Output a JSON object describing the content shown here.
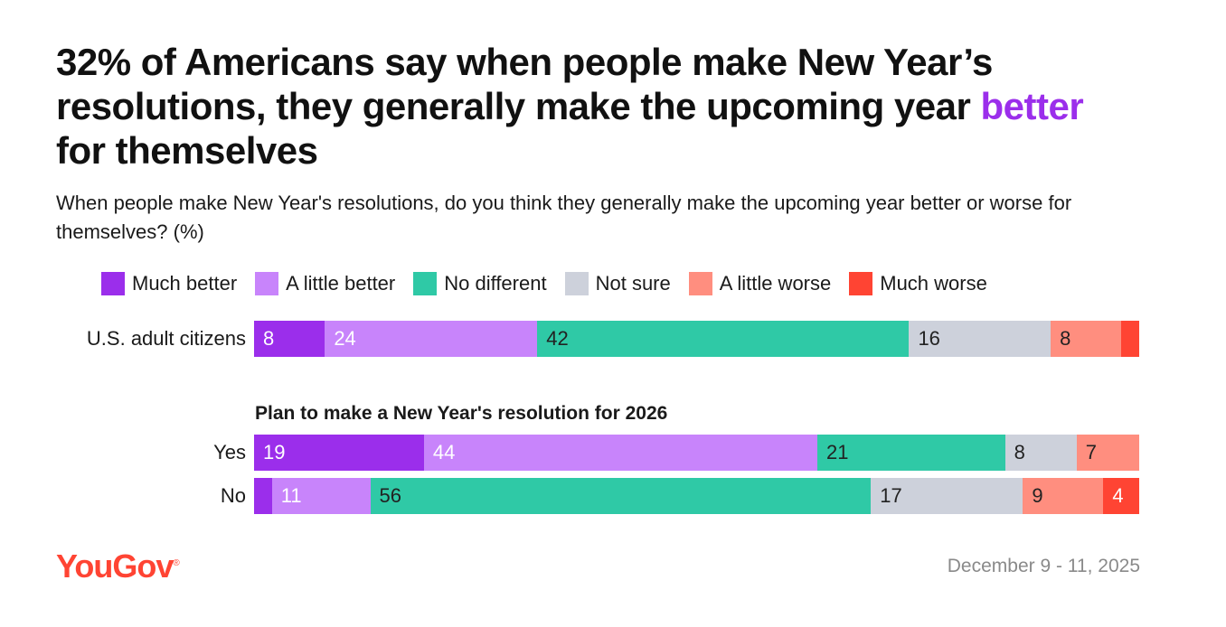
{
  "title": {
    "part1": "32% of Americans say when people make New Year’s resolutions, they generally make the upcoming year ",
    "highlight": "better",
    "part2": " for themselves"
  },
  "subtitle": "When people make New Year's resolutions, do you think they generally make the upcoming year better or worse for themselves? (%)",
  "group_title": "Plan to make a New Year's resolution for 2026",
  "logo": "YouGov",
  "logo_mark": "®",
  "date": "December 9 - 11, 2025",
  "colors": {
    "highlight": "#9b2eeb",
    "logo": "#ff4433",
    "date": "#8a8a8a"
  },
  "chart_data": {
    "type": "bar",
    "orientation": "horizontal-stacked-100",
    "categories_legend": [
      "Much better",
      "A little better",
      "No different",
      "Not sure",
      "A little worse",
      "Much worse"
    ],
    "series_colors": [
      "#9b2eeb",
      "#c884fb",
      "#2fc9a6",
      "#cdd1db",
      "#ff8e7f",
      "#ff4433"
    ],
    "label_colors": [
      "#ffffff",
      "#ffffff",
      "#222222",
      "#222222",
      "#222222",
      "#ffffff"
    ],
    "rows": [
      {
        "name": "U.S. adult citizens",
        "values": [
          8,
          24,
          42,
          16,
          8,
          2
        ],
        "labels": [
          "8",
          "24",
          "42",
          "16",
          "8",
          ""
        ]
      },
      {
        "name": "Yes",
        "values": [
          19,
          44,
          21,
          8,
          7,
          0
        ],
        "labels": [
          "19",
          "44",
          "21",
          "8",
          "7",
          ""
        ]
      },
      {
        "name": "No",
        "values": [
          2,
          11,
          56,
          17,
          9,
          4
        ],
        "labels": [
          "",
          "11",
          "56",
          "17",
          "9",
          "4"
        ]
      }
    ]
  }
}
